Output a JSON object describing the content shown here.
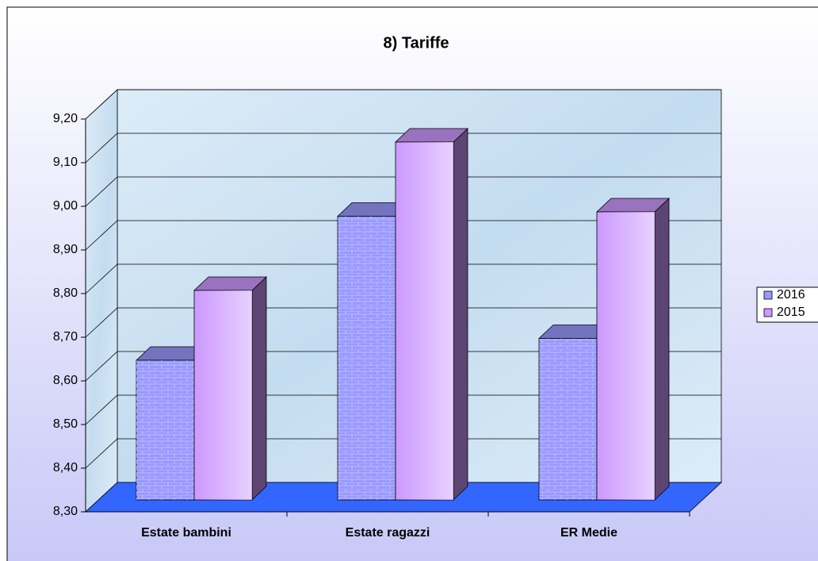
{
  "chart_data": {
    "type": "bar3d",
    "title": "8) Tariffe",
    "categories": [
      "Estate bambini",
      "Estate ragazzi",
      "ER Medie"
    ],
    "series": [
      {
        "name": "2016",
        "color": "#9999ff",
        "values": [
          8.62,
          8.95,
          8.67
        ]
      },
      {
        "name": "2015",
        "color": "#cc99ff",
        "values": [
          8.78,
          9.12,
          8.96
        ]
      }
    ],
    "ylim": [
      8.3,
      9.2
    ],
    "yticks": [
      {
        "value": 8.3,
        "label": "8,30"
      },
      {
        "value": 8.4,
        "label": "8,40"
      },
      {
        "value": 8.5,
        "label": "8,50"
      },
      {
        "value": 8.6,
        "label": "8,60"
      },
      {
        "value": 8.7,
        "label": "8,70"
      },
      {
        "value": 8.8,
        "label": "8,80"
      },
      {
        "value": 8.9,
        "label": "8,90"
      },
      {
        "value": 9.0,
        "label": "9,00"
      },
      {
        "value": 9.1,
        "label": "9,10"
      },
      {
        "value": 9.2,
        "label": "9,20"
      }
    ],
    "grid": true,
    "legend": "right"
  }
}
